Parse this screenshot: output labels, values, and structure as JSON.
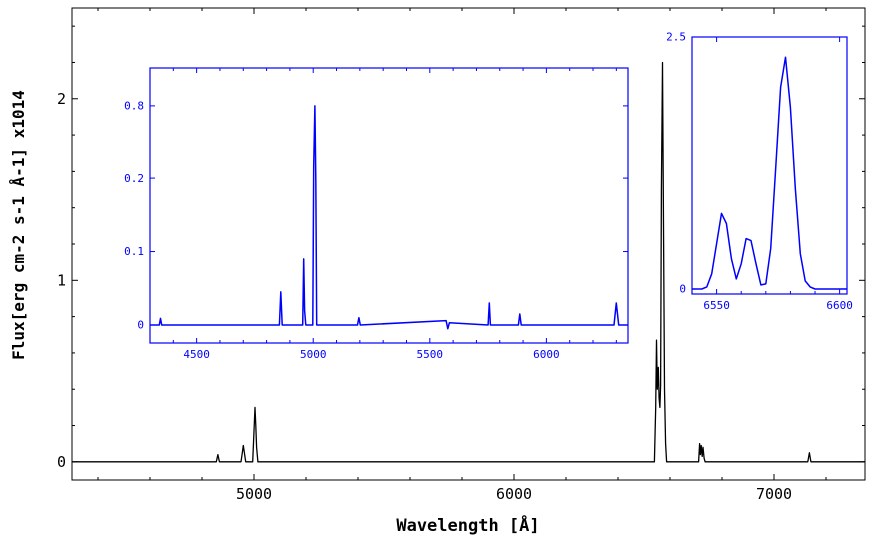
{
  "chart_data": [
    {
      "type": "line",
      "id": "main",
      "title": "",
      "xlabel": "Wavelength [Å]",
      "ylabel": "Flux[erg cm-2 s-1 Å-1] x1014",
      "xlim": [
        4300,
        7350
      ],
      "ylim": [
        -0.1,
        2.5
      ],
      "xticks": [
        5000,
        6000,
        7000
      ],
      "xtick_labels": [
        "5000",
        "6000",
        "7000"
      ],
      "yticks": [
        0,
        1,
        2
      ],
      "ytick_labels": [
        "0",
        "1",
        "2"
      ],
      "color": "#000000",
      "series": [
        {
          "x": [
            4300,
            4700,
            4855,
            4861,
            4867,
            4950,
            4955,
            4959,
            4963,
            4968,
            4995,
            5000,
            5004,
            5007,
            5010,
            5015,
            5200,
            5750,
            6300,
            6540,
            6545,
            6548,
            6551,
            6555,
            6558,
            6561,
            6564,
            6567,
            6571,
            6575,
            6579,
            6583,
            6587,
            6591,
            6595,
            6710,
            6714,
            6717,
            6720,
            6724,
            6727,
            6731,
            6735,
            7130,
            7136,
            7142,
            7350
          ],
          "y": [
            0,
            0,
            0,
            0.04,
            0,
            0,
            0.05,
            0.09,
            0.05,
            0,
            0,
            0.17,
            0.3,
            0.2,
            0.08,
            0,
            0,
            0,
            0,
            0,
            0.3,
            0.67,
            0.4,
            0.52,
            0.35,
            0.3,
            0.42,
            1.5,
            2.2,
            1.3,
            0.4,
            0.1,
            0,
            0,
            0,
            0,
            0.1,
            0.04,
            0.09,
            0.03,
            0.08,
            0.02,
            0,
            0,
            0.05,
            0,
            0
          ]
        }
      ]
    },
    {
      "type": "line",
      "id": "inset-left",
      "title": "",
      "xlabel": "",
      "ylabel": "",
      "xlim": [
        4300,
        6350
      ],
      "ylim": [
        -0.005,
        0.8
      ],
      "y_scale": "nonlinear",
      "xticks": [
        4500,
        5000,
        5500,
        6000
      ],
      "xtick_labels": [
        "4500",
        "5000",
        "5500",
        "6000"
      ],
      "yticks": [
        0,
        0.1,
        0.2,
        0.8
      ],
      "ytick_labels": [
        "0",
        "0.1",
        "0.2",
        "0.8"
      ],
      "color": "#0000ff",
      "series": [
        {
          "x": [
            4300,
            4340,
            4345,
            4350,
            4700,
            4855,
            4861,
            4867,
            4950,
            4955,
            4959,
            4963,
            4968,
            4998,
            5002,
            5007,
            5011,
            5015,
            5190,
            5196,
            5202,
            5570,
            5577,
            5584,
            5750,
            5755,
            5760,
            5880,
            5886,
            5892,
            6290,
            6300,
            6310,
            6350
          ],
          "y": [
            0,
            0,
            0.009,
            0,
            0,
            0,
            0.045,
            0,
            0,
            0,
            0.09,
            0.02,
            0,
            0,
            0.3,
            0.8,
            0.2,
            0,
            0,
            0.01,
            0,
            0.006,
            -0.005,
            0.003,
            0,
            0.03,
            0,
            0,
            0.015,
            0,
            0,
            0.03,
            0,
            0
          ]
        }
      ]
    },
    {
      "type": "line",
      "id": "inset-right",
      "title": "",
      "xlabel": "",
      "ylabel": "",
      "xlim": [
        6540,
        6603
      ],
      "ylim": [
        -0.05,
        2.5
      ],
      "xticks": [
        6550,
        6600
      ],
      "xtick_labels": [
        "6550",
        "6600"
      ],
      "minor_xticks": [
        6560,
        6570,
        6580,
        6590
      ],
      "yticks": [
        0,
        2.5
      ],
      "ytick_labels": [
        "0",
        "2.5"
      ],
      "color": "#0000ff",
      "series": [
        {
          "x": [
            6540,
            6542,
            6544,
            6546,
            6548,
            6550,
            6552,
            6554,
            6556,
            6558,
            6560,
            6562,
            6564,
            6566,
            6568,
            6570,
            6572,
            6574,
            6576,
            6578,
            6580,
            6582,
            6584,
            6586,
            6588,
            6590,
            6592,
            6594,
            6596,
            6598,
            6600,
            6603
          ],
          "y": [
            0,
            0,
            0,
            0.02,
            0.15,
            0.45,
            0.75,
            0.65,
            0.3,
            0.1,
            0.25,
            0.5,
            0.48,
            0.25,
            0.04,
            0.05,
            0.4,
            1.2,
            2.0,
            2.3,
            1.8,
            1.0,
            0.35,
            0.08,
            0.02,
            0,
            0,
            0,
            0,
            0,
            0,
            0
          ]
        }
      ]
    }
  ]
}
